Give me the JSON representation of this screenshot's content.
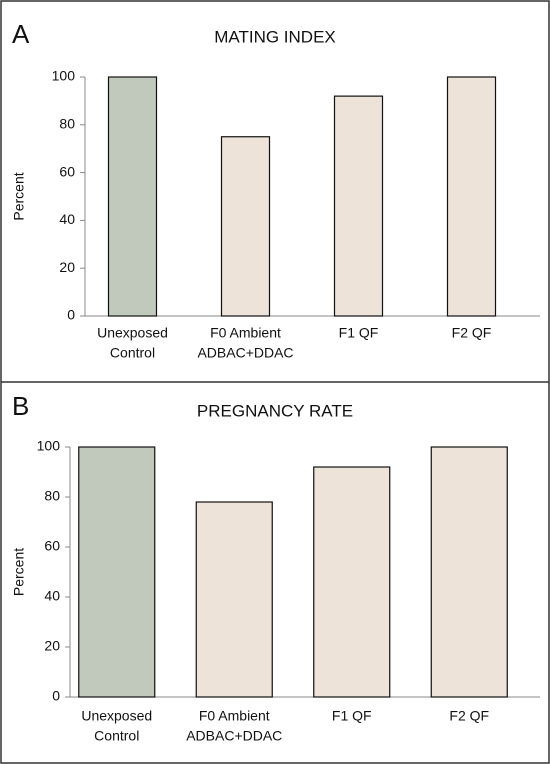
{
  "chart_data": [
    {
      "type": "bar",
      "panel": "A",
      "title": "MATING INDEX",
      "ylabel": "Percent",
      "categories": [
        [
          "Unexposed",
          "Control"
        ],
        [
          "F0 Ambient",
          "ADBAC+DDAC"
        ],
        [
          "F1 QF"
        ],
        [
          "F2 QF"
        ]
      ],
      "values": [
        100,
        75,
        92,
        100
      ],
      "colors": [
        "#c0c9bb",
        "#ede3d9",
        "#ede3d9",
        "#ede3d9"
      ],
      "ylim": [
        0,
        100
      ],
      "yticks": [
        0,
        20,
        40,
        60,
        80,
        100
      ]
    },
    {
      "type": "bar",
      "panel": "B",
      "title": "PREGNANCY RATE",
      "ylabel": "Percent",
      "categories": [
        [
          "Unexposed",
          "Control"
        ],
        [
          "F0 Ambient",
          "ADBAC+DDAC"
        ],
        [
          "F1 QF"
        ],
        [
          "F2 QF"
        ]
      ],
      "values": [
        100,
        78,
        92,
        100
      ],
      "colors": [
        "#c0c9bb",
        "#ede3d9",
        "#ede3d9",
        "#ede3d9"
      ],
      "ylim": [
        0,
        100
      ],
      "yticks": [
        0,
        20,
        40,
        60,
        80,
        100
      ]
    }
  ]
}
